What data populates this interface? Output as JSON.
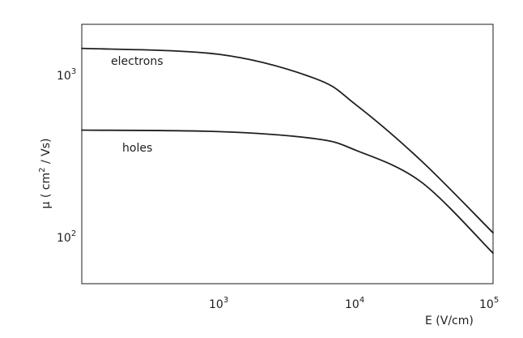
{
  "chart_data": {
    "type": "line",
    "title": "",
    "xlabel": "E (V/cm)",
    "ylabel": "μ (cm² / Vs)",
    "xscale": "log",
    "yscale": "log",
    "xlim": [
      100,
      100000
    ],
    "ylim": [
      50,
      2200
    ],
    "x_ticks": [
      {
        "base": "10",
        "exp": "3"
      },
      {
        "base": "10",
        "exp": "4"
      },
      {
        "base": "10",
        "exp": "5"
      }
    ],
    "y_ticks": [
      {
        "base": "10",
        "exp": "2"
      },
      {
        "base": "10",
        "exp": "3"
      }
    ],
    "grid": true,
    "series": [
      {
        "name": "electrons",
        "x": [
          100,
          1000,
          5000,
          10000,
          30000,
          100000
        ],
        "y": [
          1550,
          1420,
          1000,
          680,
          300,
          105
        ]
      },
      {
        "name": "holes",
        "x": [
          100,
          1000,
          5000,
          10000,
          30000,
          100000
        ],
        "y": [
          470,
          460,
          415,
          350,
          220,
          78
        ]
      }
    ]
  },
  "labels": {
    "ylabel_prefix": "μ ( cm",
    "ylabel_exp": "2",
    "ylabel_suffix": " / Vs)",
    "electrons": "electrons",
    "holes": "holes"
  }
}
